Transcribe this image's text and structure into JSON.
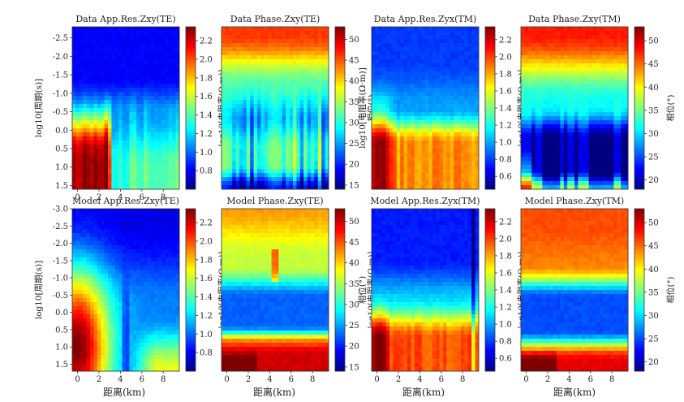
{
  "figure": {
    "shared_xlabel": "距离(km)",
    "period_ylabel": "log10[周期(s)]"
  },
  "chart_data": [
    {
      "type": "heatmap",
      "id": "data-app-res-te",
      "row": 0,
      "col": 0,
      "title": "Data App.Res.Zxy(TE)",
      "ylabel": "log10[周期(s)]",
      "xlim": [
        -0.5,
        9.5
      ],
      "ylim": [
        -2.8,
        1.6
      ],
      "y_inverted": true,
      "xticks": [
        0,
        2,
        4,
        6,
        8
      ],
      "yticks": [
        -2.5,
        -2.0,
        -1.5,
        -1.0,
        -0.5,
        0.0,
        0.5,
        1.0,
        1.5
      ],
      "ytick_labels": [
        "-2.5",
        "-2.0",
        "-1.5",
        "-1.0",
        "-0.5",
        "0.0",
        "0.5",
        "1.0",
        "1.5"
      ],
      "colorbar": {
        "label": "log10[电阻率(Ω·m)]",
        "range": [
          0.6,
          2.35
        ],
        "ticks": [
          0.8,
          1.0,
          1.2,
          1.4,
          1.6,
          1.8,
          2.0,
          2.2
        ],
        "tick_labels": [
          "0.8",
          "1.0",
          "1.2",
          "1.4",
          "1.6",
          "1.8",
          "2.0",
          "2.2"
        ]
      },
      "pattern": "data_te_res"
    },
    {
      "type": "heatmap",
      "id": "data-phase-te",
      "row": 0,
      "col": 1,
      "title": "Data Phase.Zxy(TE)",
      "ylabel": "",
      "xlim": [
        -0.5,
        9.5
      ],
      "ylim": [
        -2.8,
        1.6
      ],
      "y_inverted": true,
      "xticks": [],
      "yticks": [],
      "ytick_labels": [],
      "colorbar": {
        "label": "相位(°)",
        "range": [
          14,
          53
        ],
        "ticks": [
          15,
          20,
          25,
          30,
          35,
          40,
          45,
          50
        ],
        "tick_labels": [
          "15",
          "20",
          "25",
          "30",
          "35",
          "40",
          "45",
          "50"
        ]
      },
      "pattern": "data_te_phase"
    },
    {
      "type": "heatmap",
      "id": "data-app-res-tm",
      "row": 0,
      "col": 2,
      "title": "Data App.Res.Zyx(TM)",
      "ylabel": "log10[电阻率(Ω·m)]",
      "xlim": [
        -0.5,
        9.5
      ],
      "ylim": [
        -2.8,
        1.6
      ],
      "y_inverted": true,
      "xticks": [],
      "yticks": [],
      "ytick_labels": [],
      "colorbar": {
        "label": "log10[电阻率(Ω·m)]",
        "range": [
          0.45,
          2.35
        ],
        "ticks": [
          0.6,
          0.8,
          1.0,
          1.2,
          1.4,
          1.6,
          1.8,
          2.0,
          2.2
        ],
        "tick_labels": [
          "0.6",
          "0.8",
          "1.0",
          "1.2",
          "1.4",
          "1.6",
          "1.8",
          "2.0",
          "2.2"
        ]
      },
      "pattern": "data_tm_res"
    },
    {
      "type": "heatmap",
      "id": "data-phase-tm",
      "row": 0,
      "col": 3,
      "title": "Data Phase.Zxy(TM)",
      "ylabel": "",
      "xlim": [
        -0.5,
        9.5
      ],
      "ylim": [
        -2.8,
        1.6
      ],
      "y_inverted": true,
      "xticks": [],
      "yticks": [],
      "ytick_labels": [],
      "colorbar": {
        "label": "相位(°)",
        "range": [
          18,
          53
        ],
        "ticks": [
          20,
          25,
          30,
          35,
          40,
          45,
          50
        ],
        "tick_labels": [
          "20",
          "25",
          "30",
          "35",
          "40",
          "45",
          "50"
        ]
      },
      "pattern": "data_tm_phase"
    },
    {
      "type": "heatmap",
      "id": "model-app-res-te",
      "row": 1,
      "col": 0,
      "title": "Model App.Res.Zxy(TE)",
      "ylabel": "log10[周期(s)]",
      "xlim": [
        -0.5,
        9.5
      ],
      "ylim": [
        -3.0,
        1.7
      ],
      "y_inverted": true,
      "xticks": [
        0,
        2,
        4,
        6,
        8
      ],
      "yticks": [
        -3.0,
        -2.5,
        -2.0,
        -1.5,
        -1.0,
        -0.5,
        0.0,
        0.5,
        1.0,
        1.5
      ],
      "ytick_labels": [
        "-3.0",
        "-2.5",
        "-2.0",
        "-1.5",
        "-1.0",
        "-0.5",
        "0.0",
        "0.5",
        "1.0",
        "1.5"
      ],
      "colorbar": {
        "label": "log10[电阻率(Ω·m)]",
        "range": [
          0.6,
          2.35
        ],
        "ticks": [
          0.8,
          1.0,
          1.2,
          1.4,
          1.6,
          1.8,
          2.0,
          2.2
        ],
        "tick_labels": [
          "0.8",
          "1.0",
          "1.2",
          "1.4",
          "1.6",
          "1.8",
          "2.0",
          "2.2"
        ]
      },
      "pattern": "model_te_res"
    },
    {
      "type": "heatmap",
      "id": "model-phase-te",
      "row": 1,
      "col": 1,
      "title": "Model Phase.Zxy(TE)",
      "ylabel": "",
      "xlim": [
        -0.5,
        9.5
      ],
      "ylim": [
        -3.0,
        1.7
      ],
      "y_inverted": true,
      "xticks": [
        0,
        2,
        4,
        6,
        8
      ],
      "yticks": [],
      "ytick_labels": [],
      "colorbar": {
        "label": "log10[电阻率(Ω·m)]",
        "range": [
          14,
          53
        ],
        "ticks": [
          15,
          20,
          25,
          30,
          35,
          40,
          45,
          50
        ],
        "tick_labels": [
          "15",
          "20",
          "25",
          "30",
          "35",
          "40",
          "45",
          "50"
        ]
      },
      "pattern": "model_te_phase"
    },
    {
      "type": "heatmap",
      "id": "model-app-res-tm",
      "row": 1,
      "col": 2,
      "title": "Model App.Res.Zyx(TM)",
      "ylabel": "相位(°)",
      "xlim": [
        -0.5,
        9.5
      ],
      "ylim": [
        -3.0,
        1.7
      ],
      "y_inverted": true,
      "xticks": [
        0,
        2,
        4,
        6,
        8
      ],
      "yticks": [],
      "ytick_labels": [],
      "colorbar": {
        "label": "log10[电阻率(Ω·m)]",
        "range": [
          0.45,
          2.35
        ],
        "ticks": [
          0.6,
          0.8,
          1.0,
          1.2,
          1.4,
          1.6,
          1.8,
          2.0,
          2.2
        ],
        "tick_labels": [
          "0.6",
          "0.8",
          "1.0",
          "1.2",
          "1.4",
          "1.6",
          "1.8",
          "2.0",
          "2.2"
        ]
      },
      "pattern": "model_tm_res"
    },
    {
      "type": "heatmap",
      "id": "model-phase-tm",
      "row": 1,
      "col": 3,
      "title": "Model Phase.Zxy(TM)",
      "ylabel": "",
      "xlim": [
        -0.5,
        9.5
      ],
      "ylim": [
        -3.0,
        1.7
      ],
      "y_inverted": true,
      "xticks": [
        0,
        2,
        4,
        6,
        8
      ],
      "yticks": [],
      "ytick_labels": [],
      "colorbar": {
        "label": "相位(°)",
        "range": [
          18,
          53
        ],
        "ticks": [
          20,
          25,
          30,
          35,
          40,
          45,
          50
        ],
        "tick_labels": [
          "20",
          "25",
          "30",
          "35",
          "40",
          "45",
          "50"
        ]
      },
      "pattern": "model_tm_phase"
    }
  ]
}
